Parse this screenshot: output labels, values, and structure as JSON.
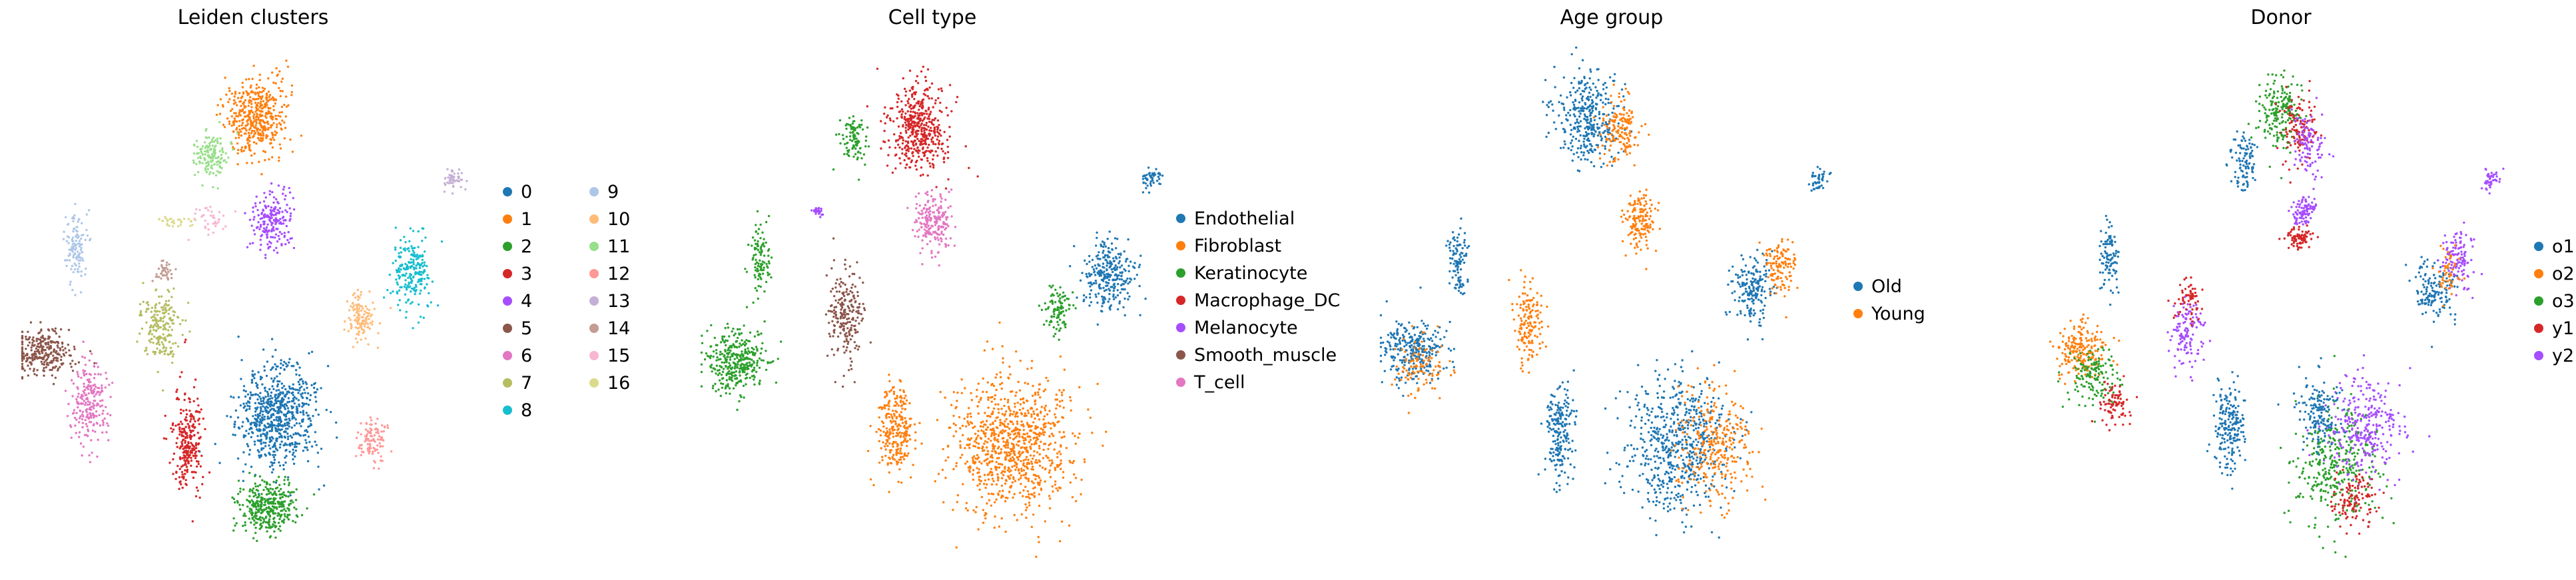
{
  "chart_data": [
    {
      "type": "scatter",
      "title": "Leiden clusters",
      "legend_position": "right",
      "legend_columns": 2,
      "grid": false,
      "categories": [
        {
          "name": "0",
          "color": "#1f77b4"
        },
        {
          "name": "1",
          "color": "#ff7f0e"
        },
        {
          "name": "2",
          "color": "#2ca02c"
        },
        {
          "name": "3",
          "color": "#d62728"
        },
        {
          "name": "4",
          "color": "#a64dff"
        },
        {
          "name": "5",
          "color": "#8c564b"
        },
        {
          "name": "6",
          "color": "#e377c2"
        },
        {
          "name": "7",
          "color": "#b5bd61"
        },
        {
          "name": "8",
          "color": "#17becf"
        },
        {
          "name": "9",
          "color": "#aec7e8"
        },
        {
          "name": "10",
          "color": "#ffbb78"
        },
        {
          "name": "11",
          "color": "#98df8a"
        },
        {
          "name": "12",
          "color": "#ff9896"
        },
        {
          "name": "13",
          "color": "#c5b0d5"
        },
        {
          "name": "14",
          "color": "#c49c94"
        },
        {
          "name": "15",
          "color": "#f7b6d2"
        },
        {
          "name": "16",
          "color": "#dbdb8d"
        }
      ],
      "clusters": [
        {
          "category": "0",
          "x": 0.55,
          "y": 0.72,
          "sx": 0.075,
          "sy": 0.09,
          "n": 700
        },
        {
          "category": "1",
          "x": 0.51,
          "y": 0.15,
          "sx": 0.055,
          "sy": 0.07,
          "n": 450
        },
        {
          "category": "2",
          "x": 0.53,
          "y": 0.9,
          "sx": 0.055,
          "sy": 0.05,
          "n": 350
        },
        {
          "category": "3",
          "x": 0.36,
          "y": 0.78,
          "sx": 0.03,
          "sy": 0.09,
          "n": 260
        },
        {
          "category": "4",
          "x": 0.54,
          "y": 0.35,
          "sx": 0.035,
          "sy": 0.05,
          "n": 200
        },
        {
          "category": "5",
          "x": 0.05,
          "y": 0.6,
          "sx": 0.06,
          "sy": 0.04,
          "n": 280
        },
        {
          "category": "6",
          "x": 0.15,
          "y": 0.7,
          "sx": 0.04,
          "sy": 0.07,
          "n": 220
        },
        {
          "category": "7",
          "x": 0.3,
          "y": 0.55,
          "sx": 0.04,
          "sy": 0.06,
          "n": 200
        },
        {
          "category": "8",
          "x": 0.84,
          "y": 0.45,
          "sx": 0.035,
          "sy": 0.06,
          "n": 220
        },
        {
          "category": "9",
          "x": 0.12,
          "y": 0.4,
          "sx": 0.02,
          "sy": 0.07,
          "n": 120
        },
        {
          "category": "10",
          "x": 0.73,
          "y": 0.53,
          "sx": 0.03,
          "sy": 0.04,
          "n": 120
        },
        {
          "category": "11",
          "x": 0.41,
          "y": 0.22,
          "sx": 0.03,
          "sy": 0.04,
          "n": 150
        },
        {
          "category": "12",
          "x": 0.76,
          "y": 0.77,
          "sx": 0.03,
          "sy": 0.04,
          "n": 100
        },
        {
          "category": "13",
          "x": 0.93,
          "y": 0.27,
          "sx": 0.02,
          "sy": 0.02,
          "n": 50
        },
        {
          "category": "14",
          "x": 0.31,
          "y": 0.45,
          "sx": 0.02,
          "sy": 0.02,
          "n": 40
        },
        {
          "category": "15",
          "x": 0.4,
          "y": 0.35,
          "sx": 0.04,
          "sy": 0.03,
          "n": 40
        },
        {
          "category": "16",
          "x": 0.33,
          "y": 0.35,
          "sx": 0.04,
          "sy": 0.01,
          "n": 30
        }
      ]
    },
    {
      "type": "scatter",
      "title": "Cell type",
      "legend_position": "right",
      "legend_columns": 1,
      "grid": false,
      "categories": [
        {
          "name": "Endothelial",
          "color": "#1f77b4"
        },
        {
          "name": "Fibroblast",
          "color": "#ff7f0e"
        },
        {
          "name": "Keratinocyte",
          "color": "#2ca02c"
        },
        {
          "name": "Macrophage_DC",
          "color": "#d62728"
        },
        {
          "name": "Melanocyte",
          "color": "#a64dff"
        },
        {
          "name": "Smooth_muscle",
          "color": "#8c564b"
        },
        {
          "name": "T_cell",
          "color": "#e377c2"
        }
      ],
      "clusters": [
        {
          "category": "Endothelial",
          "x": 0.88,
          "y": 0.45,
          "sx": 0.05,
          "sy": 0.06,
          "n": 280
        },
        {
          "category": "Endothelial",
          "x": 0.97,
          "y": 0.27,
          "sx": 0.02,
          "sy": 0.02,
          "n": 50
        },
        {
          "category": "Fibroblast",
          "x": 0.67,
          "y": 0.78,
          "sx": 0.12,
          "sy": 0.12,
          "n": 900
        },
        {
          "category": "Fibroblast",
          "x": 0.42,
          "y": 0.75,
          "sx": 0.035,
          "sy": 0.08,
          "n": 250
        },
        {
          "category": "Keratinocyte",
          "x": 0.08,
          "y": 0.62,
          "sx": 0.06,
          "sy": 0.06,
          "n": 350
        },
        {
          "category": "Keratinocyte",
          "x": 0.13,
          "y": 0.42,
          "sx": 0.02,
          "sy": 0.06,
          "n": 100
        },
        {
          "category": "Keratinocyte",
          "x": 0.33,
          "y": 0.19,
          "sx": 0.025,
          "sy": 0.04,
          "n": 100
        },
        {
          "category": "Keratinocyte",
          "x": 0.77,
          "y": 0.52,
          "sx": 0.025,
          "sy": 0.04,
          "n": 100
        },
        {
          "category": "Macrophage_DC",
          "x": 0.47,
          "y": 0.17,
          "sx": 0.06,
          "sy": 0.08,
          "n": 450
        },
        {
          "category": "Melanocyte",
          "x": 0.25,
          "y": 0.33,
          "sx": 0.015,
          "sy": 0.01,
          "n": 25
        },
        {
          "category": "Smooth_muscle",
          "x": 0.31,
          "y": 0.53,
          "sx": 0.035,
          "sy": 0.08,
          "n": 220
        },
        {
          "category": "T_cell",
          "x": 0.5,
          "y": 0.35,
          "sx": 0.035,
          "sy": 0.05,
          "n": 200
        }
      ]
    },
    {
      "type": "scatter",
      "title": "Age group",
      "legend_position": "right",
      "legend_columns": 1,
      "grid": false,
      "categories": [
        {
          "name": "Old",
          "color": "#1f77b4"
        },
        {
          "name": "Young",
          "color": "#ff7f0e"
        }
      ],
      "clusters": [
        {
          "category": "Old",
          "x": 0.45,
          "y": 0.15,
          "sx": 0.06,
          "sy": 0.08,
          "n": 350
        },
        {
          "category": "Young",
          "x": 0.52,
          "y": 0.17,
          "sx": 0.035,
          "sy": 0.06,
          "n": 150
        },
        {
          "category": "Old",
          "x": 0.07,
          "y": 0.6,
          "sx": 0.06,
          "sy": 0.05,
          "n": 280
        },
        {
          "category": "Young",
          "x": 0.09,
          "y": 0.63,
          "sx": 0.05,
          "sy": 0.05,
          "n": 100
        },
        {
          "category": "Old",
          "x": 0.64,
          "y": 0.78,
          "sx": 0.1,
          "sy": 0.12,
          "n": 600
        },
        {
          "category": "Young",
          "x": 0.72,
          "y": 0.78,
          "sx": 0.07,
          "sy": 0.1,
          "n": 300
        },
        {
          "category": "Old",
          "x": 0.39,
          "y": 0.75,
          "sx": 0.03,
          "sy": 0.08,
          "n": 200
        },
        {
          "category": "Old",
          "x": 0.8,
          "y": 0.48,
          "sx": 0.04,
          "sy": 0.06,
          "n": 180
        },
        {
          "category": "Young",
          "x": 0.86,
          "y": 0.44,
          "sx": 0.03,
          "sy": 0.05,
          "n": 120
        },
        {
          "category": "Young",
          "x": 0.56,
          "y": 0.35,
          "sx": 0.03,
          "sy": 0.05,
          "n": 150
        },
        {
          "category": "Young",
          "x": 0.32,
          "y": 0.55,
          "sx": 0.03,
          "sy": 0.07,
          "n": 150
        },
        {
          "category": "Old",
          "x": 0.17,
          "y": 0.42,
          "sx": 0.02,
          "sy": 0.06,
          "n": 100
        },
        {
          "category": "Old",
          "x": 0.94,
          "y": 0.27,
          "sx": 0.02,
          "sy": 0.02,
          "n": 45
        }
      ]
    },
    {
      "type": "scatter",
      "title": "Donor",
      "legend_position": "right",
      "legend_columns": 1,
      "grid": false,
      "categories": [
        {
          "name": "o1",
          "color": "#1f77b4"
        },
        {
          "name": "o2",
          "color": "#ff7f0e"
        },
        {
          "name": "o3",
          "color": "#2ca02c"
        },
        {
          "name": "y1",
          "color": "#d62728"
        },
        {
          "name": "y2",
          "color": "#a64dff"
        }
      ],
      "clusters": [
        {
          "category": "o3",
          "x": 0.5,
          "y": 0.14,
          "sx": 0.04,
          "sy": 0.06,
          "n": 200
        },
        {
          "category": "y1",
          "x": 0.54,
          "y": 0.17,
          "sx": 0.035,
          "sy": 0.06,
          "n": 120
        },
        {
          "category": "y2",
          "x": 0.56,
          "y": 0.2,
          "sx": 0.03,
          "sy": 0.05,
          "n": 100
        },
        {
          "category": "o1",
          "x": 0.42,
          "y": 0.23,
          "sx": 0.025,
          "sy": 0.05,
          "n": 100
        },
        {
          "category": "o2",
          "x": 0.07,
          "y": 0.6,
          "sx": 0.05,
          "sy": 0.05,
          "n": 200
        },
        {
          "category": "o3",
          "x": 0.1,
          "y": 0.65,
          "sx": 0.05,
          "sy": 0.05,
          "n": 150
        },
        {
          "category": "y1",
          "x": 0.14,
          "y": 0.7,
          "sx": 0.03,
          "sy": 0.04,
          "n": 80
        },
        {
          "category": "o1",
          "x": 0.39,
          "y": 0.75,
          "sx": 0.03,
          "sy": 0.08,
          "n": 200
        },
        {
          "category": "o3",
          "x": 0.62,
          "y": 0.82,
          "sx": 0.08,
          "sy": 0.1,
          "n": 350
        },
        {
          "category": "y2",
          "x": 0.68,
          "y": 0.75,
          "sx": 0.08,
          "sy": 0.09,
          "n": 300
        },
        {
          "category": "y1",
          "x": 0.66,
          "y": 0.88,
          "sx": 0.04,
          "sy": 0.05,
          "n": 120
        },
        {
          "category": "o1",
          "x": 0.58,
          "y": 0.72,
          "sx": 0.04,
          "sy": 0.06,
          "n": 150
        },
        {
          "category": "o1",
          "x": 0.83,
          "y": 0.48,
          "sx": 0.04,
          "sy": 0.05,
          "n": 140
        },
        {
          "category": "y2",
          "x": 0.88,
          "y": 0.42,
          "sx": 0.03,
          "sy": 0.05,
          "n": 120
        },
        {
          "category": "o2",
          "x": 0.86,
          "y": 0.44,
          "sx": 0.02,
          "sy": 0.04,
          "n": 50
        },
        {
          "category": "y2",
          "x": 0.55,
          "y": 0.33,
          "sx": 0.025,
          "sy": 0.025,
          "n": 90
        },
        {
          "category": "y1",
          "x": 0.54,
          "y": 0.38,
          "sx": 0.025,
          "sy": 0.02,
          "n": 80
        },
        {
          "category": "o1",
          "x": 0.13,
          "y": 0.42,
          "sx": 0.02,
          "sy": 0.06,
          "n": 100
        },
        {
          "category": "y2",
          "x": 0.3,
          "y": 0.57,
          "sx": 0.03,
          "sy": 0.06,
          "n": 120
        },
        {
          "category": "y1",
          "x": 0.3,
          "y": 0.5,
          "sx": 0.025,
          "sy": 0.04,
          "n": 60
        },
        {
          "category": "y2",
          "x": 0.95,
          "y": 0.27,
          "sx": 0.02,
          "sy": 0.02,
          "n": 40
        }
      ]
    }
  ]
}
